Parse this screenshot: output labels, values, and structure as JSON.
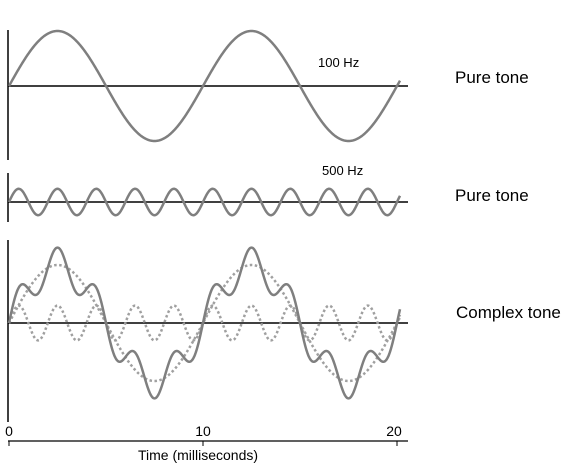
{
  "chart_data": {
    "type": "line",
    "title": "",
    "colors": {
      "wave": "#7f7f7f",
      "component_dotted": "#a0a0a0",
      "axis": "#000000"
    },
    "x_axis": {
      "label": "Time (milliseconds)",
      "range_ms": [
        0,
        20
      ],
      "ticks": [
        {
          "value": 0,
          "label": "0"
        },
        {
          "value": 10,
          "label": "10"
        },
        {
          "value": 20,
          "label": "20"
        }
      ]
    },
    "panels": [
      {
        "title": "Pure tone",
        "frequency_label": "100 Hz",
        "series": [
          {
            "frequency_hz": 100,
            "amplitude": 1.0,
            "style": "solid"
          }
        ]
      },
      {
        "title": "Pure tone",
        "frequency_label": "500 Hz",
        "series": [
          {
            "frequency_hz": 500,
            "amplitude": 0.6,
            "style": "solid"
          }
        ]
      },
      {
        "title": "Complex tone",
        "frequency_label": "",
        "series": [
          {
            "frequency_hz": 100,
            "amplitude": 1.0,
            "style": "dotted"
          },
          {
            "frequency_hz": 500,
            "amplitude": 0.3,
            "style": "dotted"
          },
          {
            "frequency_hz": "100+500",
            "amplitude": 1.3,
            "style": "solid"
          }
        ]
      }
    ]
  }
}
